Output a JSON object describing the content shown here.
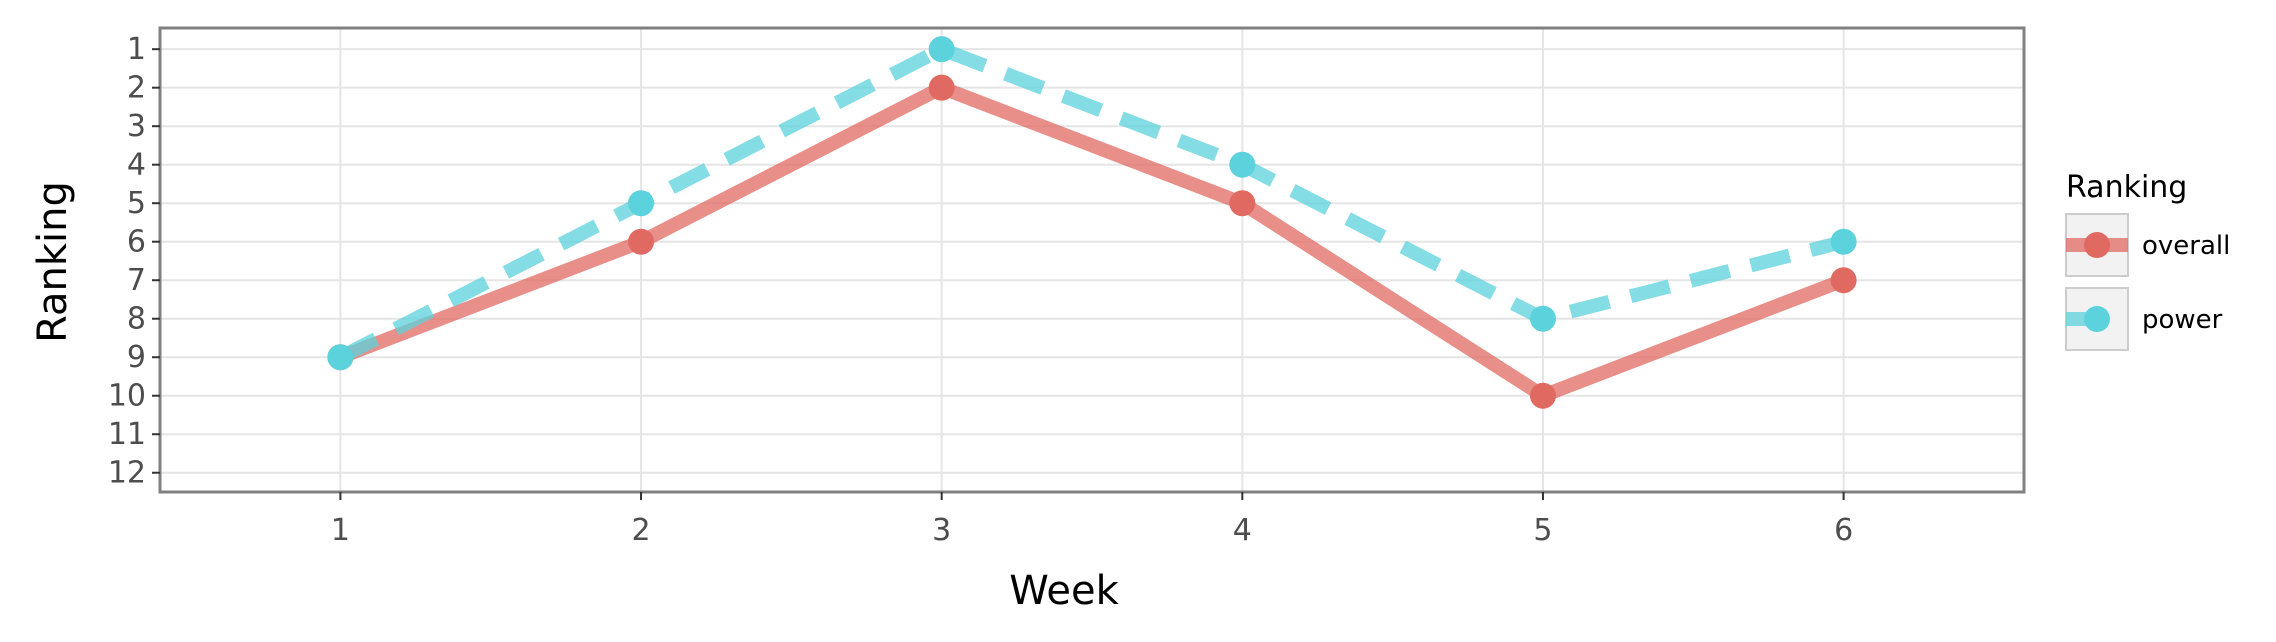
{
  "chart_data": {
    "type": "line",
    "xlabel": "Week",
    "ylabel": "Ranking",
    "x": [
      1,
      2,
      3,
      4,
      5,
      6
    ],
    "x_ticks": [
      "1",
      "2",
      "3",
      "4",
      "5",
      "6"
    ],
    "xlim": [
      0.4,
      6.6
    ],
    "y_ticks": [
      "1",
      "2",
      "3",
      "4",
      "5",
      "6",
      "7",
      "8",
      "9",
      "10",
      "11",
      "12"
    ],
    "ylim": [
      12.5,
      0.45
    ],
    "y_reversed": true,
    "grid": true,
    "legend": {
      "title": "Ranking",
      "position": "right"
    },
    "series": [
      {
        "name": "overall",
        "values": [
          9,
          6,
          2,
          5,
          10,
          7
        ],
        "color": "#e06a62",
        "line_style": "solid"
      },
      {
        "name": "power",
        "values": [
          9,
          5,
          1,
          4,
          8,
          6
        ],
        "color": "#5bd2dc",
        "line_style": "dashed"
      }
    ]
  }
}
